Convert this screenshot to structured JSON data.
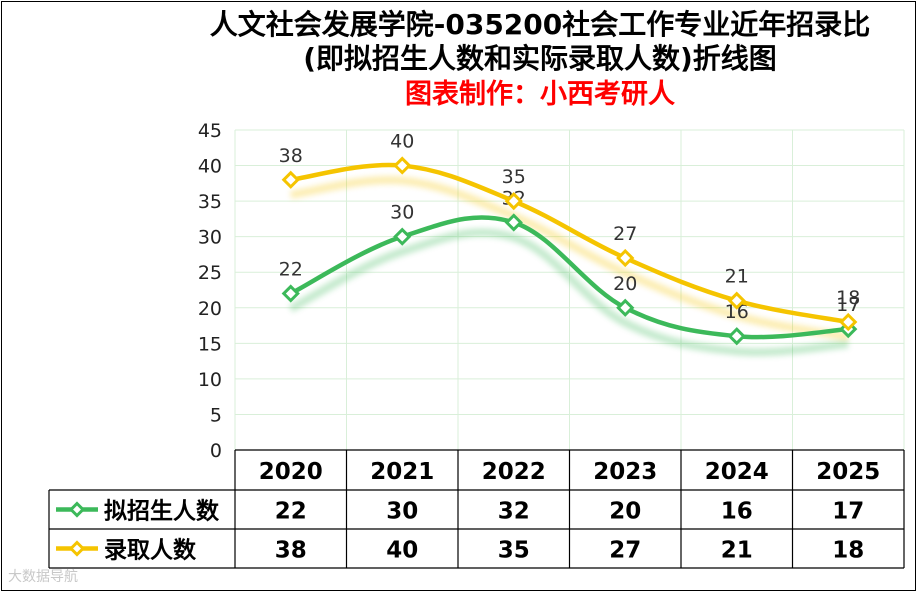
{
  "title": {
    "line1": "人文社会发展学院-035200社会工作专业近年招录比",
    "line2": "(即拟招生人数和实际录取人数)折线图",
    "credit": "图表制作：小西考研人"
  },
  "watermark": "大数据导航",
  "colors": {
    "plan": "#3cb95a",
    "admit": "#f5c400",
    "grid": "#d9efd9",
    "label": "#333333"
  },
  "chart_data": {
    "type": "line",
    "categories": [
      "2020",
      "2021",
      "2022",
      "2023",
      "2024",
      "2025"
    ],
    "series": [
      {
        "name": "拟招生人数",
        "values": [
          22,
          30,
          32,
          20,
          16,
          17
        ],
        "color": "#3cb95a"
      },
      {
        "name": "录取人数",
        "values": [
          38,
          40,
          35,
          27,
          21,
          18
        ],
        "color": "#f5c400"
      }
    ],
    "ylim": [
      0,
      45
    ],
    "yticks": [
      "0",
      "5",
      "10",
      "15",
      "20",
      "25",
      "30",
      "35",
      "40",
      "45"
    ],
    "grid": true,
    "legend": "data-table-below",
    "title": "人文社会发展学院-035200社会工作专业近年招录比"
  }
}
